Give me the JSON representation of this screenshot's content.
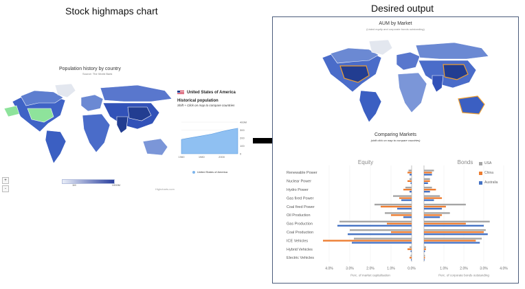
{
  "captions": {
    "left": "Stock highmaps chart",
    "right": "Desired output"
  },
  "left_panel": {
    "title": "Population history by country",
    "subtitle": "Source: The World Bank",
    "legend_labels": [
      "1M",
      "1000M"
    ],
    "zoom_in": "+",
    "zoom_out": "-",
    "credits": "Highcharts.com",
    "info": {
      "country": "United States of America",
      "chart_title": "Historical population",
      "hint": "Shift + Click on map to compare countries",
      "legend": "United States of America"
    }
  },
  "right_panel": {
    "map_title": "AUM by Market",
    "map_subtitle": "(Listed equity and corporate bonds outstanding)",
    "chart_title": "Comparing Markets",
    "chart_subtitle": "(shift click on map to compare countries)"
  },
  "colors": {
    "map_low": "#d6e0f5",
    "map_high": "#223d91",
    "selected_country_left": "#8ee39b",
    "area_fill": "#8fc0f2",
    "usa": "#a5a5a5",
    "china": "#ed7d31",
    "australia": "#4472c4",
    "arrow": "#000000"
  },
  "chart_data": [
    {
      "type": "area",
      "title": "Historical population",
      "x": [
        1960,
        1970,
        1980,
        1990,
        2000,
        2010,
        2016
      ],
      "series": [
        {
          "name": "United States of America",
          "values": [
            181,
            205,
            227,
            250,
            282,
            309,
            323
          ]
        }
      ],
      "xlabel": "",
      "ylabel": "",
      "ylim": [
        0,
        400
      ],
      "y_tick_labels": [
        "0",
        "100",
        "200",
        "300",
        "400M"
      ],
      "x_tick_labels": [
        "1960",
        "1980",
        "2000"
      ]
    },
    {
      "type": "bar",
      "title": "Comparing Markets",
      "subtitle": "(shift click on map to compare countries)",
      "categories": [
        "Renewable Power",
        "Nuclear Power",
        "Hydro Power",
        "Gas fired Power",
        "Coal fired Power",
        "Oil Production",
        "Gas Production",
        "Coal Production",
        "ICE Vehicles",
        "Hybrid Vehicles",
        "Electric Vehicles"
      ],
      "panels": [
        {
          "name": "Equity",
          "xlabel": "Perc. of market capitalisation",
          "xlim": [
            0,
            4.0
          ],
          "direction": "reversed",
          "tick_labels": [
            "4.0%",
            "3.0%",
            "2.0%",
            "1.0%",
            "0.0%"
          ],
          "series": [
            {
              "name": "USA",
              "values": [
                0.15,
                0.1,
                0.3,
                0.9,
                1.8,
                1.3,
                3.5,
                3.0,
                2.8,
                0.1,
                0.05
              ]
            },
            {
              "name": "China",
              "values": [
                0.2,
                0.2,
                0.4,
                0.6,
                1.5,
                1.0,
                1.2,
                1.0,
                4.3,
                0.2,
                0.1
              ]
            },
            {
              "name": "Australia",
              "values": [
                0.1,
                0.05,
                0.1,
                0.5,
                0.7,
                0.4,
                3.6,
                3.1,
                2.9,
                0.05,
                0.03
              ]
            }
          ]
        },
        {
          "name": "Bonds",
          "xlabel": "Perc. of corporate bonds outstanding",
          "xlim": [
            0,
            4.0
          ],
          "direction": "normal",
          "tick_labels": [
            "1.0%",
            "2.0%",
            "3.0%",
            "4.0%"
          ],
          "series": [
            {
              "name": "USA",
              "values": [
                0.5,
                0.3,
                0.4,
                0.8,
                2.1,
                1.3,
                3.3,
                3.1,
                2.9,
                0.1,
                0.05
              ]
            },
            {
              "name": "China",
              "values": [
                0.4,
                0.3,
                0.6,
                0.9,
                1.1,
                0.9,
                2.1,
                3.0,
                2.6,
                0.1,
                0.05
              ]
            },
            {
              "name": "Australia",
              "values": [
                0.4,
                0.2,
                0.3,
                0.5,
                0.9,
                0.8,
                3.0,
                3.2,
                2.8,
                0.05,
                0.03
              ]
            }
          ]
        }
      ],
      "legend": {
        "entries": [
          "USA",
          "China",
          "Australia"
        ],
        "placement": "right"
      }
    }
  ]
}
